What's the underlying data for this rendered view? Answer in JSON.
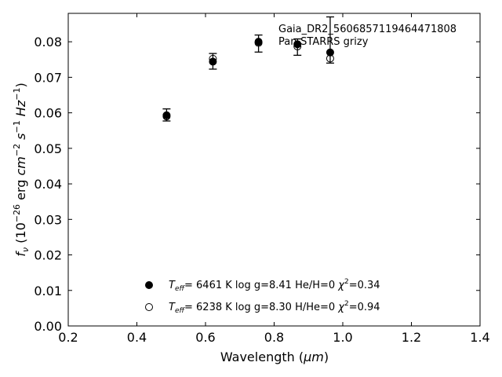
{
  "chart_data": {
    "type": "scatter",
    "xlabel": "Wavelength (μm)",
    "ylabel": "f_ν (10^-26 erg cm^-2 s^-1 Hz^-1)",
    "xlim": [
      0.2,
      1.4
    ],
    "ylim": [
      0.0,
      0.088
    ],
    "x_ticks": [
      0.2,
      0.4,
      0.6,
      0.8,
      1.0,
      1.2,
      1.4
    ],
    "x_tick_labels": [
      "0.2",
      "0.4",
      "0.6",
      "0.8",
      "1.0",
      "1.2",
      "1.4"
    ],
    "y_ticks": [
      0.0,
      0.01,
      0.02,
      0.03,
      0.04,
      0.05,
      0.06,
      0.07,
      0.08
    ],
    "y_tick_labels": [
      "0.00",
      "0.01",
      "0.02",
      "0.03",
      "0.04",
      "0.05",
      "0.06",
      "0.07",
      "0.08"
    ],
    "grid": false,
    "annotation": [
      "Gaia_DR2_5606857119464471808",
      "Pan-STARRS grizy"
    ],
    "observed": {
      "x": [
        0.4866,
        0.6215,
        0.7545,
        0.8679,
        0.9633
      ],
      "y": [
        0.0594,
        0.0745,
        0.0795,
        0.0785,
        0.0805
      ],
      "yerr": [
        0.0017,
        0.0022,
        0.0024,
        0.0023,
        0.0065
      ]
    },
    "series": [
      {
        "name": "Teff= 6461 K log g=8.41 He/H=0 χ2=0.34",
        "marker": "filled-circle",
        "x": [
          0.4866,
          0.6215,
          0.7545,
          0.8679,
          0.9633
        ],
        "y": [
          0.0593,
          0.0744,
          0.08,
          0.0793,
          0.077
        ]
      },
      {
        "name": "Teff= 6238 K log g=8.30 H/He=0 χ2=0.94",
        "marker": "open-circle",
        "x": [
          0.4866,
          0.6215,
          0.7545,
          0.8679,
          0.9633
        ],
        "y": [
          0.059,
          0.0752,
          0.0797,
          0.0787,
          0.0753
        ]
      }
    ],
    "legend_placement": "lower-center"
  },
  "legend": [
    {
      "teff_value": "=  6461 K  log g=8.41  He/H=0  ",
      "chi_value": "=0.34"
    },
    {
      "teff_value": "=  6238 K  log g=8.30  H/He=0  ",
      "chi_value": "=0.94"
    }
  ],
  "labels": {
    "xlabel_main": "Wavelength (",
    "xlabel_unit": "μm",
    "xlabel_close": ")",
    "ylabel_f": "f",
    "ylabel_nu": "ν",
    "ylabel_open": " (10",
    "ylabel_exp1": "−26",
    "ylabel_erg": " erg ",
    "ylabel_cm": "cm",
    "ylabel_exp2": "−2",
    "ylabel_s": " s",
    "ylabel_exp3": "−1",
    "ylabel_hz": " Hz",
    "ylabel_exp4": "−1",
    "ylabel_close": ")",
    "teff_T": "T",
    "teff_sub": "eff",
    "chi_symbol": "χ",
    "chi_sup": "2"
  }
}
